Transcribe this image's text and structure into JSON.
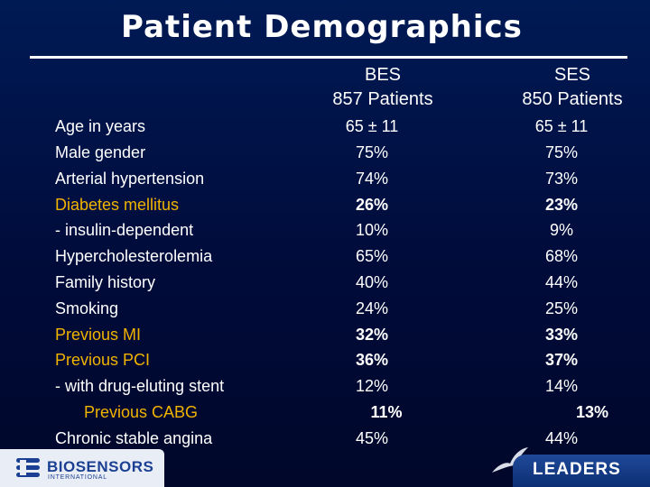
{
  "title": "Patient Demographics",
  "columns": {
    "bes": {
      "name": "BES",
      "patients": "857 Patients"
    },
    "ses": {
      "name": "SES",
      "patients": "850 Patients"
    }
  },
  "rows": [
    {
      "label": "Age in years",
      "bes": "65 ± 11",
      "ses": "65 ± 11"
    },
    {
      "label": "Male gender",
      "bes": "75%",
      "ses": "75%"
    },
    {
      "label": "Arterial hypertension",
      "bes": "74%",
      "ses": "73%"
    },
    {
      "label": "Diabetes mellitus",
      "bes": "26%",
      "ses": "23%"
    },
    {
      "label": "- insulin-dependent",
      "bes": "10%",
      "ses": "9%"
    },
    {
      "label": "Hypercholesterolemia",
      "bes": "65%",
      "ses": "68%"
    },
    {
      "label": "Family history",
      "bes": "40%",
      "ses": "44%"
    },
    {
      "label": "Smoking",
      "bes": "24%",
      "ses": "25%"
    },
    {
      "label": "Previous MI",
      "bes": "32%",
      "ses": "33%"
    },
    {
      "label": "Previous PCI",
      "bes": "36%",
      "ses": "37%"
    },
    {
      "label": "- with drug-eluting stent",
      "bes": "12%",
      "ses": "14%"
    },
    {
      "label": "Previous CABG",
      "bes": "11%",
      "ses": "13%"
    },
    {
      "label": "Chronic stable angina",
      "bes": "45%",
      "ses": "44%"
    }
  ],
  "logos": {
    "biosensors": {
      "name": "BIOSENSORS",
      "sub": "INTERNATIONAL"
    },
    "leaders": {
      "name": "LEADERS"
    }
  },
  "colors": {
    "background": "#000b3a",
    "highlight": "#f0b400",
    "text": "#ffffff"
  }
}
